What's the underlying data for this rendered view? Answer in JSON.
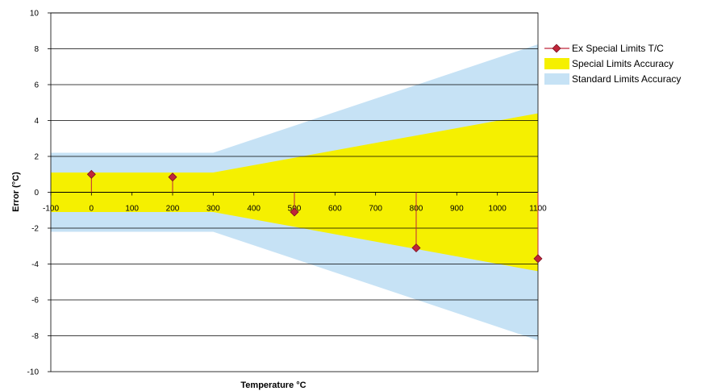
{
  "chart_data": {
    "type": "area",
    "xlabel": "Temperature °C",
    "ylabel": "Error (°C)",
    "xlim": [
      -100,
      1100
    ],
    "ylim": [
      -10,
      10
    ],
    "x_ticks": [
      "-100",
      "0",
      "100",
      "200",
      "300",
      "400",
      "500",
      "600",
      "700",
      "800",
      "900",
      "1000",
      "1100"
    ],
    "y_ticks": [
      "10",
      "8",
      "6",
      "4",
      "2",
      "0",
      "-2",
      "-4",
      "-6",
      "-8",
      "-10"
    ],
    "grid": true,
    "legend_position": "right",
    "series": [
      {
        "name": "Standard Limits Accuracy",
        "kind": "band",
        "color": "#c6e2f5",
        "x": [
          -100,
          300,
          1100
        ],
        "upper": [
          2.2,
          2.2,
          8.25
        ],
        "lower": [
          -2.2,
          -2.2,
          -8.25
        ]
      },
      {
        "name": "Special Limits Accuracy",
        "kind": "band",
        "color": "#f5f000",
        "x": [
          -100,
          300,
          1100
        ],
        "upper": [
          1.1,
          1.1,
          4.4
        ],
        "lower": [
          -1.1,
          -1.1,
          -4.4
        ]
      },
      {
        "name": "Ex Special Limits T/C",
        "kind": "markers",
        "color": "#c0263a",
        "x": [
          0,
          200,
          500,
          800,
          1100
        ],
        "y": [
          1.0,
          0.85,
          -1.1,
          -3.1,
          -3.7
        ]
      }
    ]
  }
}
